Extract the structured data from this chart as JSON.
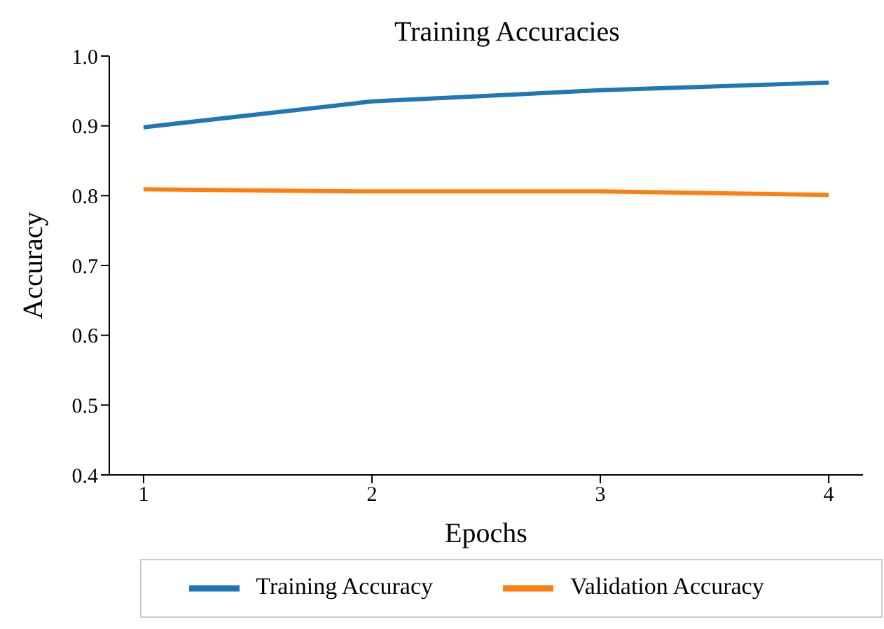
{
  "chart_data": {
    "type": "line",
    "title": "Training Accuracies",
    "xlabel": "Epochs",
    "ylabel": "Accuracy",
    "x": [
      1,
      2,
      3,
      4
    ],
    "series": [
      {
        "name": "Training Accuracy",
        "color": "#1f77b4",
        "values": [
          0.898,
          0.935,
          0.951,
          0.962
        ]
      },
      {
        "name": "Validation Accuracy",
        "color": "#ff7f0e",
        "values": [
          0.809,
          0.806,
          0.806,
          0.801
        ]
      }
    ],
    "xlim": [
      0.85,
      4.15
    ],
    "xticks": [
      1,
      2,
      3,
      4
    ],
    "ylim": [
      0.4,
      1.0
    ],
    "yticks": [
      {
        "value": 0.4,
        "label": "0.4"
      },
      {
        "value": 0.5,
        "label": "0.5"
      },
      {
        "value": 0.6,
        "label": "0.6"
      },
      {
        "value": 0.7,
        "label": "0.7"
      },
      {
        "value": 0.8,
        "label": "0.8"
      },
      {
        "value": 0.9,
        "label": "0.9"
      },
      {
        "value": 1.0,
        "label": "1.0"
      }
    ],
    "grid": false,
    "legend": "bottom",
    "marker": "none",
    "line_style": "solid"
  }
}
